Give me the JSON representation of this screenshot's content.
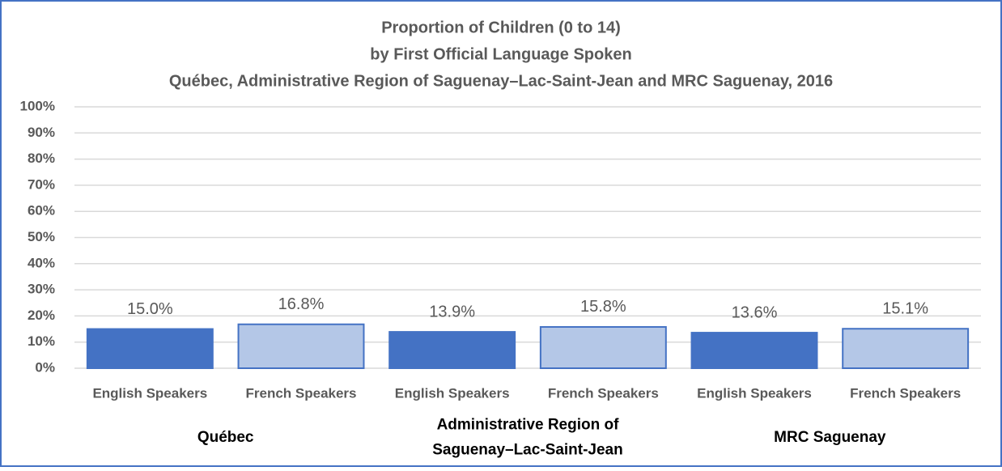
{
  "chart_data": {
    "type": "bar",
    "title": [
      "Proportion of Children (0 to 14)",
      "by First Official Language Spoken",
      "Québec, Administrative Region of Saguenay–Lac-Saint-Jean and MRC Saguenay, 2016"
    ],
    "categories": [
      "English Speakers",
      "French Speakers",
      "English Speakers",
      "French Speakers",
      "English Speakers",
      "French Speakers"
    ],
    "groups": [
      [
        "Québec"
      ],
      [
        "Administrative Region of",
        "Saguenay–Lac-Saint-Jean"
      ],
      [
        "MRC Saguenay"
      ]
    ],
    "values": [
      15.0,
      16.8,
      13.9,
      15.8,
      13.6,
      15.1
    ],
    "value_labels": [
      "15.0%",
      "16.8%",
      "13.9%",
      "15.8%",
      "13.6%",
      "15.1%"
    ],
    "colors": [
      "#4472c4",
      "#b4c7e7",
      "#4472c4",
      "#b4c7e7",
      "#4472c4",
      "#b4c7e7"
    ],
    "ylim": [
      0,
      100
    ],
    "yticks": [
      {
        "value": 0,
        "label": "0%"
      },
      {
        "value": 10,
        "label": "10%"
      },
      {
        "value": 20,
        "label": "20%"
      },
      {
        "value": 30,
        "label": "30%"
      },
      {
        "value": 40,
        "label": "40%"
      },
      {
        "value": 50,
        "label": "50%"
      },
      {
        "value": 60,
        "label": "60%"
      },
      {
        "value": 70,
        "label": "70%"
      },
      {
        "value": 80,
        "label": "80%"
      },
      {
        "value": 90,
        "label": "90%"
      },
      {
        "value": 100,
        "label": "100%"
      }
    ],
    "grid": true
  }
}
